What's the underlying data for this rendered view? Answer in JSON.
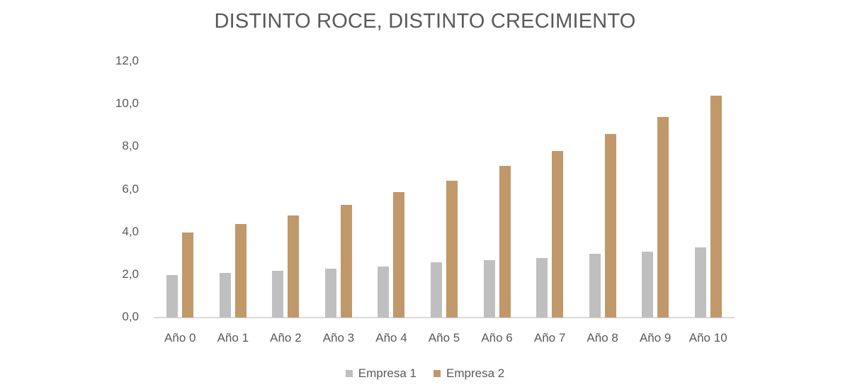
{
  "chart_data": {
    "type": "bar",
    "title": "DISTINTO ROCE, DISTINTO CRECIMIENTO",
    "xlabel": "",
    "ylabel": "",
    "ylim": [
      0,
      12
    ],
    "yticks": [
      "0,0",
      "2,0",
      "4,0",
      "6,0",
      "8,0",
      "10,0",
      "12,0"
    ],
    "grid": false,
    "legend_position": "bottom",
    "categories": [
      "Año 0",
      "Año 1",
      "Año 2",
      "Año 3",
      "Año 4",
      "Año 5",
      "Año 6",
      "Año 7",
      "Año 8",
      "Año 9",
      "Año 10"
    ],
    "series": [
      {
        "name": "Empresa 1",
        "color": "#bfbfbf",
        "values": [
          2.0,
          2.1,
          2.2,
          2.3,
          2.4,
          2.6,
          2.7,
          2.8,
          3.0,
          3.1,
          3.3
        ]
      },
      {
        "name": "Empresa 2",
        "color": "#c0986a",
        "values": [
          4.0,
          4.4,
          4.8,
          5.3,
          5.9,
          6.4,
          7.1,
          7.8,
          8.6,
          9.4,
          10.4
        ]
      }
    ]
  }
}
